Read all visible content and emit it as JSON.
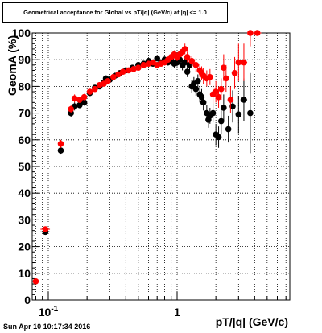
{
  "header": {
    "title": "Geometrical acceptance for Global vs pT/|q| (GeV/c) at |η| <= 1.0"
  },
  "footer": {
    "timestamp": "Sun Apr 10 10:17:34 2016"
  },
  "chart_data": {
    "type": "scatter",
    "title": "Geometrical acceptance for Global vs pT/|q| (GeV/c) at |η| <= 1.0",
    "xlabel": "pT/|q| (GeV/c)",
    "ylabel": "GeomA (%)",
    "xscale": "log",
    "xlim": [
      0.075,
      7.5
    ],
    "ylim": [
      0,
      100
    ],
    "grid": true,
    "y_ticks": [
      0,
      10,
      20,
      30,
      40,
      50,
      60,
      70,
      80,
      90,
      100
    ],
    "x_ticks": [
      {
        "value": 0.1,
        "label": "10",
        "sup": "-1"
      },
      {
        "value": 1,
        "label": "1",
        "sup": ""
      }
    ],
    "series": [
      {
        "color": "#000000",
        "points": [
          [
            0.095,
            25.5,
            0.008,
            1.0
          ],
          [
            0.125,
            56,
            0.005,
            1.5
          ],
          [
            0.15,
            70,
            0.005,
            1.5
          ],
          [
            0.16,
            72.5,
            0.005,
            1.5
          ],
          [
            0.175,
            73,
            0.005,
            1.2
          ],
          [
            0.19,
            74,
            0.005,
            1.2
          ],
          [
            0.21,
            77.5,
            0.005,
            1.0
          ],
          [
            0.23,
            79.5,
            0.005,
            1.0
          ],
          [
            0.25,
            80,
            0.005,
            1.0
          ],
          [
            0.27,
            81.5,
            0.005,
            1.0
          ],
          [
            0.28,
            83,
            0.005,
            1.0
          ],
          [
            0.3,
            82.5,
            0.006,
            1.0
          ],
          [
            0.33,
            84,
            0.006,
            1.0
          ],
          [
            0.36,
            85,
            0.006,
            1.0
          ],
          [
            0.4,
            86,
            0.007,
            1.0
          ],
          [
            0.45,
            87,
            0.007,
            1.0
          ],
          [
            0.5,
            88,
            0.008,
            1.0
          ],
          [
            0.55,
            88.5,
            0.008,
            1.0
          ],
          [
            0.6,
            89.5,
            0.009,
            1.0
          ],
          [
            0.65,
            88.5,
            0.01,
            1.0
          ],
          [
            0.7,
            90.5,
            0.01,
            1.0
          ],
          [
            0.75,
            89,
            0.01,
            1.0
          ],
          [
            0.8,
            90,
            0.01,
            1.2
          ],
          [
            0.85,
            89,
            0.01,
            1.2
          ],
          [
            0.9,
            90,
            0.01,
            1.2
          ],
          [
            0.95,
            88.5,
            0.012,
            1.5
          ],
          [
            1.0,
            89,
            0.012,
            1.5
          ],
          [
            1.05,
            90,
            0.012,
            1.5
          ],
          [
            1.1,
            88,
            0.012,
            2.0
          ],
          [
            1.15,
            89,
            0.013,
            2.0
          ],
          [
            1.2,
            85.5,
            0.013,
            2.0
          ],
          [
            1.25,
            88,
            0.013,
            2.0
          ],
          [
            1.3,
            80,
            0.013,
            2.5
          ],
          [
            1.35,
            81,
            0.013,
            2.5
          ],
          [
            1.4,
            79,
            0.013,
            2.5
          ],
          [
            1.45,
            82,
            0.014,
            2.5
          ],
          [
            1.5,
            77,
            0.015,
            3.0
          ],
          [
            1.55,
            76,
            0.015,
            3.0
          ],
          [
            1.6,
            74,
            0.015,
            3.0
          ],
          [
            1.7,
            70,
            0.02,
            3.0
          ],
          [
            1.75,
            67.5,
            0.02,
            3.0
          ],
          [
            1.8,
            69,
            0.02,
            3.0
          ],
          [
            1.9,
            70,
            0.02,
            3.5
          ],
          [
            2.0,
            62,
            0.03,
            4.0
          ],
          [
            2.1,
            61,
            0.03,
            4.0
          ],
          [
            2.2,
            67,
            0.04,
            5.0
          ],
          [
            2.3,
            72,
            0.05,
            5.0
          ],
          [
            2.5,
            64,
            0.06,
            5.0
          ],
          [
            2.7,
            72.5,
            0.1,
            6.0
          ],
          [
            3.0,
            69.5,
            0.1,
            7.0
          ],
          [
            3.3,
            75,
            0.2,
            8.0
          ],
          [
            3.7,
            70,
            0.2,
            15.0
          ]
        ]
      },
      {
        "color": "#ff0000",
        "points": [
          [
            0.08,
            7,
            0.003,
            0.5
          ],
          [
            0.095,
            26.5,
            0.008,
            1.0
          ],
          [
            0.125,
            58.5,
            0.005,
            1.5
          ],
          [
            0.15,
            71.5,
            0.005,
            1.5
          ],
          [
            0.16,
            75.5,
            0.005,
            1.5
          ],
          [
            0.175,
            75,
            0.005,
            1.2
          ],
          [
            0.19,
            76,
            0.005,
            1.2
          ],
          [
            0.21,
            78,
            0.005,
            1.0
          ],
          [
            0.23,
            79,
            0.005,
            1.0
          ],
          [
            0.25,
            80.5,
            0.005,
            1.0
          ],
          [
            0.27,
            81,
            0.005,
            1.0
          ],
          [
            0.29,
            82,
            0.006,
            1.0
          ],
          [
            0.32,
            83.5,
            0.006,
            1.0
          ],
          [
            0.35,
            84.5,
            0.006,
            1.0
          ],
          [
            0.38,
            85.5,
            0.007,
            1.0
          ],
          [
            0.42,
            86,
            0.007,
            1.0
          ],
          [
            0.46,
            86.5,
            0.007,
            1.0
          ],
          [
            0.5,
            87,
            0.008,
            1.0
          ],
          [
            0.55,
            88,
            0.008,
            1.0
          ],
          [
            0.6,
            88.5,
            0.009,
            1.0
          ],
          [
            0.65,
            89,
            0.01,
            1.0
          ],
          [
            0.7,
            88,
            0.01,
            1.0
          ],
          [
            0.75,
            88.5,
            0.01,
            1.0
          ],
          [
            0.8,
            89,
            0.01,
            1.2
          ],
          [
            0.85,
            90,
            0.01,
            1.2
          ],
          [
            0.9,
            91,
            0.01,
            1.2
          ],
          [
            0.95,
            92,
            0.012,
            1.5
          ],
          [
            1.0,
            91,
            0.012,
            1.5
          ],
          [
            1.05,
            92,
            0.012,
            1.5
          ],
          [
            1.1,
            93,
            0.012,
            1.5
          ],
          [
            1.15,
            94,
            0.013,
            2.0
          ],
          [
            1.2,
            91,
            0.013,
            2.0
          ],
          [
            1.3,
            89.5,
            0.013,
            2.0
          ],
          [
            1.4,
            88,
            0.013,
            2.5
          ],
          [
            1.5,
            86,
            0.015,
            2.5
          ],
          [
            1.55,
            85,
            0.015,
            2.5
          ],
          [
            1.6,
            84,
            0.015,
            3.0
          ],
          [
            1.7,
            83,
            0.02,
            3.0
          ],
          [
            1.8,
            83.5,
            0.02,
            3.0
          ],
          [
            1.9,
            77,
            0.02,
            3.5
          ],
          [
            2.0,
            78,
            0.03,
            4.0
          ],
          [
            2.1,
            76,
            0.03,
            4.0
          ],
          [
            2.2,
            79,
            0.04,
            4.0
          ],
          [
            2.3,
            87,
            0.05,
            5.0
          ],
          [
            2.4,
            83,
            0.05,
            5.0
          ],
          [
            2.6,
            75,
            0.06,
            5.0
          ],
          [
            2.8,
            85,
            0.1,
            6.0
          ],
          [
            3.0,
            89,
            0.1,
            7.0
          ],
          [
            3.3,
            89,
            0.2,
            7.0
          ],
          [
            3.7,
            100,
            0.2,
            5.0
          ],
          [
            4.2,
            100,
            0.3,
            0.0
          ]
        ]
      }
    ]
  }
}
